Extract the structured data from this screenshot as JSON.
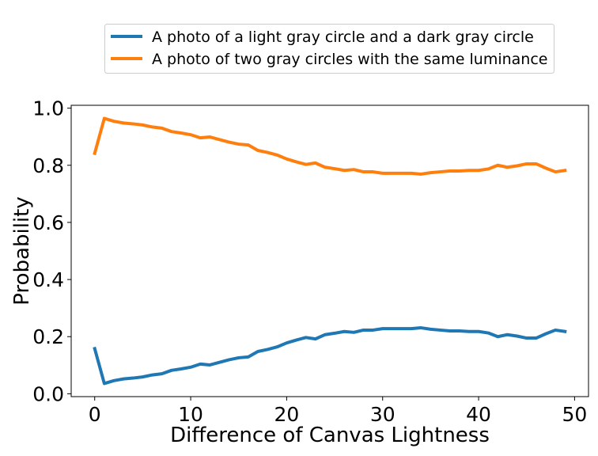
{
  "chart_data": {
    "type": "line",
    "xlabel": "Difference of Canvas Lightness",
    "ylabel": "Probability",
    "xlim": [
      -2.45,
      51.45
    ],
    "ylim": [
      -0.01,
      1.01
    ],
    "xticks": [
      0,
      10,
      20,
      30,
      40,
      50
    ],
    "yticks": [
      0.0,
      0.2,
      0.4,
      0.6,
      0.8,
      1.0
    ],
    "xtick_labels": [
      "0",
      "10",
      "20",
      "30",
      "40",
      "50"
    ],
    "ytick_labels": [
      "0.0",
      "0.2",
      "0.4",
      "0.6",
      "0.8",
      "1.0"
    ],
    "grid": false,
    "legend_position": "top-center-outside",
    "x": [
      0,
      1,
      2,
      3,
      4,
      5,
      6,
      7,
      8,
      9,
      10,
      11,
      12,
      13,
      14,
      15,
      16,
      17,
      18,
      19,
      20,
      21,
      22,
      23,
      24,
      25,
      26,
      27,
      28,
      29,
      30,
      31,
      32,
      33,
      34,
      35,
      36,
      37,
      38,
      39,
      40,
      41,
      42,
      43,
      44,
      45,
      46,
      47,
      48,
      49
    ],
    "series": [
      {
        "name": "A photo of a light gray circle and a dark gray circle",
        "color": "#1f77b4",
        "values": [
          0.158,
          0.036,
          0.046,
          0.052,
          0.055,
          0.059,
          0.066,
          0.07,
          0.082,
          0.087,
          0.093,
          0.104,
          0.101,
          0.11,
          0.119,
          0.126,
          0.129,
          0.148,
          0.155,
          0.164,
          0.178,
          0.188,
          0.197,
          0.192,
          0.207,
          0.212,
          0.218,
          0.215,
          0.223,
          0.223,
          0.228,
          0.228,
          0.228,
          0.228,
          0.231,
          0.226,
          0.223,
          0.22,
          0.22,
          0.218,
          0.218,
          0.213,
          0.2,
          0.207,
          0.202,
          0.195,
          0.195,
          0.21,
          0.223,
          0.218
        ]
      },
      {
        "name": "A photo of two gray circles with the same luminance",
        "color": "#ff7f0e",
        "values": [
          0.842,
          0.964,
          0.954,
          0.948,
          0.945,
          0.941,
          0.934,
          0.93,
          0.918,
          0.913,
          0.907,
          0.896,
          0.899,
          0.89,
          0.881,
          0.874,
          0.871,
          0.852,
          0.845,
          0.836,
          0.822,
          0.812,
          0.803,
          0.808,
          0.793,
          0.788,
          0.782,
          0.785,
          0.777,
          0.777,
          0.772,
          0.772,
          0.772,
          0.772,
          0.769,
          0.774,
          0.777,
          0.78,
          0.78,
          0.782,
          0.782,
          0.787,
          0.8,
          0.793,
          0.798,
          0.805,
          0.805,
          0.79,
          0.777,
          0.782
        ]
      }
    ]
  }
}
